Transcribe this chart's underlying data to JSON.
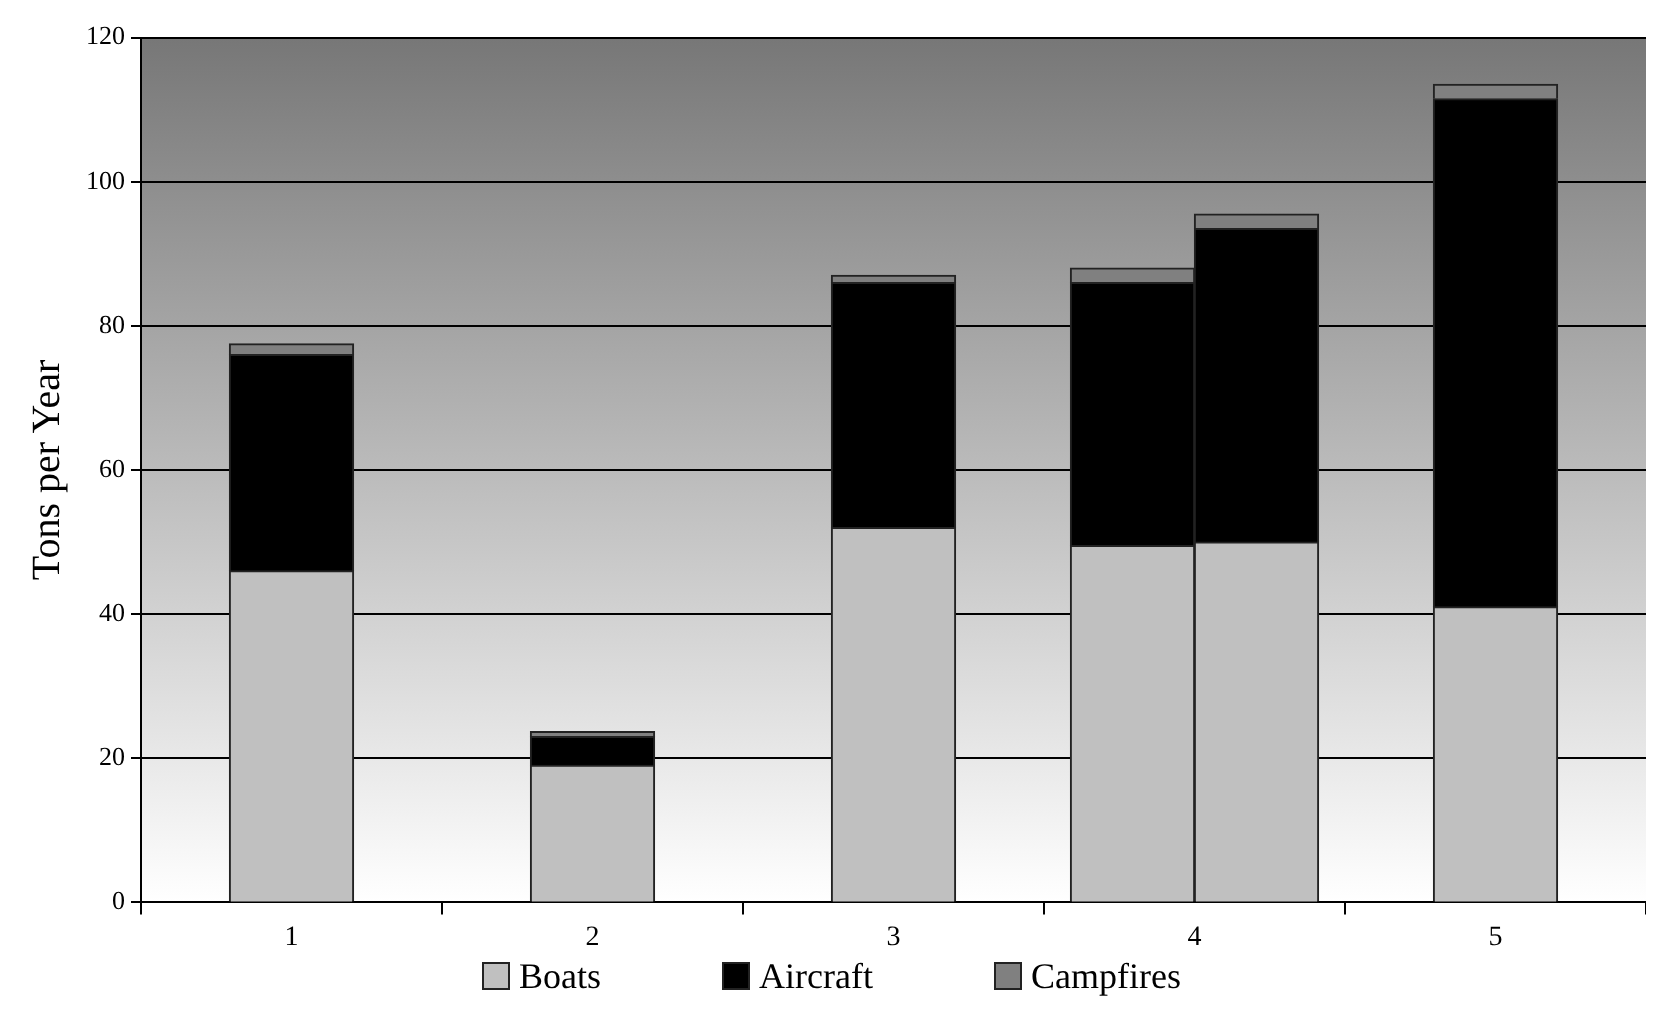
{
  "chart_data": {
    "type": "bar",
    "ylabel": "Tons per Year",
    "categories": [
      "1",
      "2",
      "3",
      "4",
      "5"
    ],
    "series": [
      {
        "name": "Boats",
        "color": "#c0c0c0",
        "values": [
          46,
          19,
          52,
          49.5,
          41
        ],
        "base": [
          0,
          0,
          0,
          0,
          0
        ]
      },
      {
        "name": "Aircraft",
        "color": "#000000",
        "values": [
          30,
          4,
          34,
          36.5,
          70.5
        ],
        "base": [
          46,
          19,
          52,
          49.5,
          41
        ]
      },
      {
        "name": "Campfires",
        "color": "#808080",
        "values": [
          1.5,
          0.7,
          1,
          2,
          2
        ],
        "base": [
          76,
          23,
          86,
          86,
          111.5
        ]
      },
      {
        "color": "#c0c0c0",
        "values": [
          null,
          null,
          null,
          50,
          null
        ],
        "base": [
          null,
          null,
          null,
          0,
          null
        ]
      },
      {
        "color": "#000000",
        "values": [
          null,
          null,
          null,
          43.5,
          null
        ],
        "base": [
          null,
          null,
          null,
          50,
          null
        ]
      },
      {
        "color": "#808080",
        "values": [
          null,
          null,
          null,
          2,
          null
        ],
        "base": [
          null,
          null,
          null,
          93.5,
          null
        ]
      }
    ],
    "ylim": [
      0,
      120
    ],
    "yticks": [
      0,
      20,
      40,
      60,
      80,
      100,
      120
    ],
    "grid": "y",
    "legend": "bottom"
  }
}
